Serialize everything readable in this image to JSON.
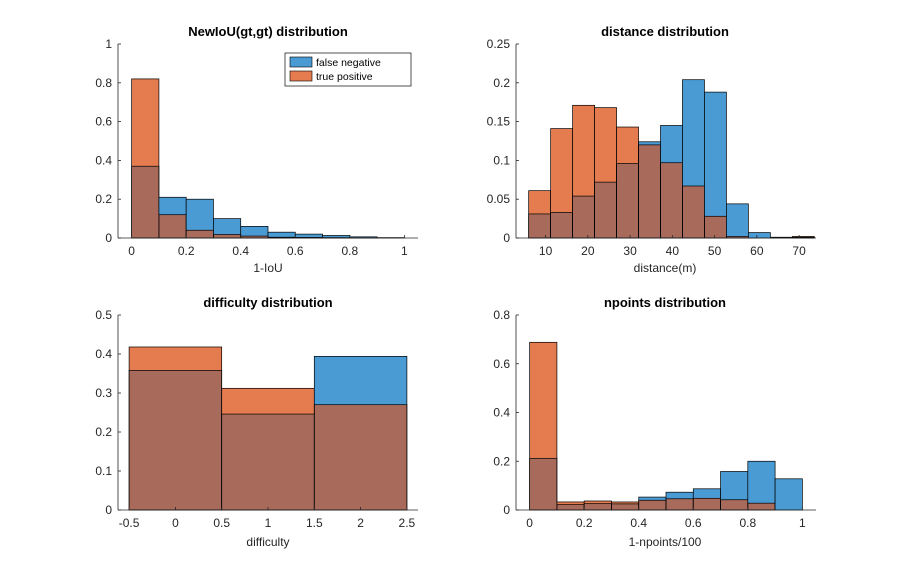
{
  "colors": {
    "false_negative": "#4a9bd4",
    "true_positive": "#e57c4f",
    "overlap": "#a86b5b",
    "axis": "#262626",
    "bar_edge": "#000000"
  },
  "legend": {
    "placement": "top-right-of-first-panel",
    "items": [
      {
        "label": "false negative",
        "color_key": "false_negative"
      },
      {
        "label": "true positive",
        "color_key": "true_positive"
      }
    ]
  },
  "chart_data": [
    {
      "type": "bar",
      "title": "NewIoU(gt,gt) distribution",
      "xlabel": "1-IoU",
      "ylabel": "",
      "xlim": [
        -0.05,
        1.05
      ],
      "ylim": [
        0,
        1
      ],
      "xticks": [
        0,
        0.2,
        0.4,
        0.6,
        0.8,
        1
      ],
      "xticklabels": [
        "0",
        "0.2",
        "0.4",
        "0.6",
        "0.8",
        "1"
      ],
      "yticks": [
        0,
        0.2,
        0.4,
        0.6,
        0.8,
        1
      ],
      "yticklabels": [
        "0",
        "0.2",
        "0.4",
        "0.6",
        "0.8",
        "1"
      ],
      "bin_edges": [
        0,
        0.1,
        0.2,
        0.3,
        0.4,
        0.5,
        0.6,
        0.7,
        0.8,
        0.9,
        1.0
      ],
      "series": [
        {
          "name": "false negative",
          "values": [
            0.37,
            0.21,
            0.2,
            0.1,
            0.06,
            0.03,
            0.02,
            0.013,
            0.006,
            0.002
          ]
        },
        {
          "name": "true positive",
          "values": [
            0.82,
            0.12,
            0.04,
            0.018,
            0.01,
            0.004,
            0.003,
            0.002,
            0.001,
            0.0
          ]
        }
      ]
    },
    {
      "type": "bar",
      "title": "distance distribution",
      "xlabel": "distance(m)",
      "ylabel": "",
      "xlim": [
        3,
        74
      ],
      "ylim": [
        0,
        0.25
      ],
      "xticks": [
        10,
        20,
        30,
        40,
        50,
        60,
        70
      ],
      "xticklabels": [
        "10",
        "20",
        "30",
        "40",
        "50",
        "60",
        "70"
      ],
      "yticks": [
        0,
        0.05,
        0.1,
        0.15,
        0.2,
        0.25
      ],
      "yticklabels": [
        "0",
        "0.05",
        "0.1",
        "0.15",
        "0.2",
        "0.25"
      ],
      "bin_edges": [
        6,
        11.2,
        16.4,
        21.6,
        26.8,
        32,
        37.2,
        42.4,
        47.6,
        52.8,
        58,
        63.2,
        68.4,
        73.6
      ],
      "series": [
        {
          "name": "false negative",
          "values": [
            0.031,
            0.033,
            0.054,
            0.072,
            0.096,
            0.124,
            0.145,
            0.204,
            0.188,
            0.044,
            0.007,
            0.001,
            0.001
          ]
        },
        {
          "name": "true positive",
          "values": [
            0.061,
            0.141,
            0.171,
            0.168,
            0.143,
            0.12,
            0.097,
            0.067,
            0.028,
            0.002,
            0.0,
            0.0,
            0.002
          ]
        }
      ]
    },
    {
      "type": "bar",
      "title": "difficulty distribution",
      "xlabel": "difficulty",
      "ylabel": "",
      "xlim": [
        -0.62,
        2.62
      ],
      "ylim": [
        0,
        0.5
      ],
      "xticks": [
        -0.5,
        0,
        0.5,
        1,
        1.5,
        2,
        2.5
      ],
      "xticklabels": [
        "-0.5",
        "0",
        "0.5",
        "1",
        "1.5",
        "2",
        "2.5"
      ],
      "yticks": [
        0,
        0.1,
        0.2,
        0.3,
        0.4,
        0.5
      ],
      "yticklabels": [
        "0",
        "0.1",
        "0.2",
        "0.3",
        "0.4",
        "0.5"
      ],
      "bin_edges": [
        -0.5,
        0.5,
        1.5,
        2.5
      ],
      "series": [
        {
          "name": "false negative",
          "values": [
            0.358,
            0.246,
            0.394
          ]
        },
        {
          "name": "true positive",
          "values": [
            0.418,
            0.312,
            0.27
          ]
        }
      ]
    },
    {
      "type": "bar",
      "title": "npoints distribution",
      "xlabel": "1-npoints/100",
      "ylabel": "",
      "xlim": [
        -0.05,
        1.05
      ],
      "ylim": [
        0,
        0.8
      ],
      "xticks": [
        0,
        0.2,
        0.4,
        0.6,
        0.8,
        1
      ],
      "xticklabels": [
        "0",
        "0.2",
        "0.4",
        "0.6",
        "0.8",
        "1"
      ],
      "yticks": [
        0,
        0.2,
        0.4,
        0.6,
        0.8
      ],
      "yticklabels": [
        "0",
        "0.2",
        "0.4",
        "0.6",
        "0.8"
      ],
      "bin_edges": [
        0,
        0.1,
        0.2,
        0.3,
        0.4,
        0.5,
        0.6,
        0.7,
        0.8,
        0.9,
        1.0
      ],
      "series": [
        {
          "name": "false negative",
          "values": [
            0.212,
            0.022,
            0.026,
            0.025,
            0.053,
            0.073,
            0.087,
            0.158,
            0.2,
            0.128
          ]
        },
        {
          "name": "true positive",
          "values": [
            0.688,
            0.033,
            0.037,
            0.033,
            0.04,
            0.046,
            0.048,
            0.042,
            0.028,
            0.0
          ]
        }
      ]
    }
  ]
}
